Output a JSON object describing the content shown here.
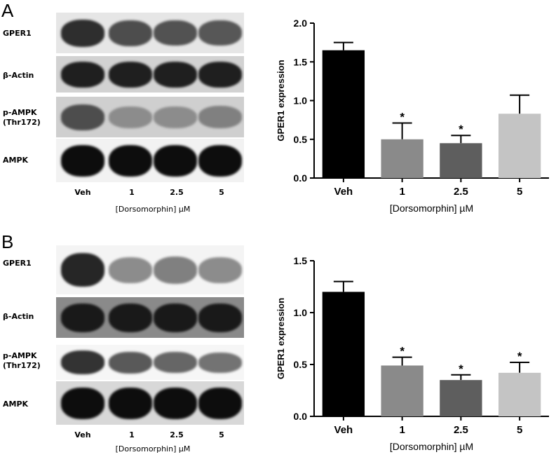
{
  "panels": [
    {
      "letter": "A",
      "blot": {
        "rows": [
          {
            "label": "GPER1",
            "band_intensity": [
              0.82,
              0.7,
              0.68,
              0.66
            ]
          },
          {
            "label": "β-Actin",
            "band_intensity": [
              0.88,
              0.88,
              0.88,
              0.88
            ]
          },
          {
            "label": "p-AMPK\n(Thr172)",
            "band_intensity": [
              0.7,
              0.45,
              0.45,
              0.5
            ]
          },
          {
            "label": "AMPK",
            "band_intensity": [
              0.95,
              0.95,
              0.95,
              0.95
            ]
          }
        ],
        "lanes": [
          "Veh",
          "1",
          "2.5",
          "5"
        ],
        "xlabel": "[Dorsomorphin] µM"
      }
    },
    {
      "letter": "B",
      "blot": {
        "rows": [
          {
            "label": "GPER1",
            "band_intensity": [
              0.85,
              0.45,
              0.5,
              0.45
            ]
          },
          {
            "label": "β-Actin",
            "band_intensity": [
              0.9,
              0.9,
              0.9,
              0.9
            ]
          },
          {
            "label": "p-AMPK\n(Thr172)",
            "band_intensity": [
              0.8,
              0.65,
              0.6,
              0.55
            ]
          },
          {
            "label": "AMPK",
            "band_intensity": [
              0.95,
              0.95,
              0.95,
              0.95
            ]
          }
        ],
        "lanes": [
          "Veh",
          "1",
          "2.5",
          "5"
        ],
        "xlabel": "[Dorsomorphin] µM"
      }
    }
  ],
  "chart_data": [
    {
      "type": "bar",
      "panel": "A",
      "categories": [
        "Veh",
        "1",
        "2.5",
        "5"
      ],
      "values": [
        1.65,
        0.5,
        0.45,
        0.83
      ],
      "errors": [
        0.1,
        0.21,
        0.1,
        0.24
      ],
      "significance": [
        "",
        "*",
        "*",
        ""
      ],
      "colors": [
        "#000000",
        "#8a8a8a",
        "#5e5e5e",
        "#c4c4c4"
      ],
      "xlabel": "[Dorsomorphin] µM",
      "ylabel": "GPER1 expression",
      "ylim": [
        0,
        2.0
      ],
      "yticks": [
        "0.0",
        "0.5",
        "1.0",
        "1.5",
        "2.0"
      ],
      "grid": false
    },
    {
      "type": "bar",
      "panel": "B",
      "categories": [
        "Veh",
        "1",
        "2.5",
        "5"
      ],
      "values": [
        1.2,
        0.49,
        0.35,
        0.42
      ],
      "errors": [
        0.1,
        0.08,
        0.05,
        0.1
      ],
      "significance": [
        "",
        "*",
        "*",
        "*"
      ],
      "colors": [
        "#000000",
        "#8a8a8a",
        "#5e5e5e",
        "#c4c4c4"
      ],
      "xlabel": "[Dorsomorphin] µM",
      "ylabel": "GPER1 expression",
      "ylim": [
        0,
        1.5
      ],
      "yticks": [
        "0.0",
        "0.5",
        "1.0",
        "1.5"
      ],
      "grid": false
    }
  ]
}
